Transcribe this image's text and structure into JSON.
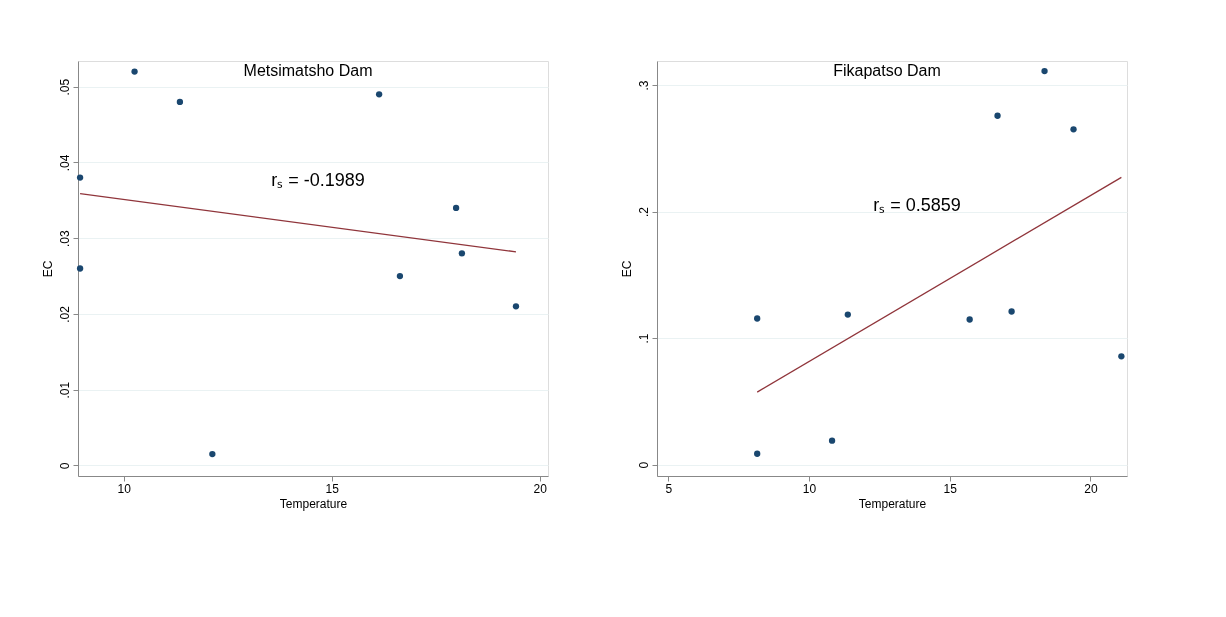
{
  "chart_data": [
    {
      "type": "scatter",
      "title": "Metsimatsho Dam",
      "xlabel": "Temperature",
      "ylabel": "EC",
      "xlim": [
        8.9,
        20.2
      ],
      "xticks": [
        10,
        15,
        20
      ],
      "ylim": [
        -0.0014,
        0.0534
      ],
      "yticks": [
        0,
        {
          "value": 0.01,
          "label": ".01"
        },
        {
          "value": 0.02,
          "label": ".02"
        },
        {
          "value": 0.03,
          "label": ".03"
        },
        {
          "value": 0.04,
          "label": ".04"
        },
        {
          "value": 0.05,
          "label": ".05"
        }
      ],
      "grid": "y",
      "series": [
        {
          "marker": "circle",
          "color": "#1a476f",
          "x": [
            8.95,
            8.95,
            10.26,
            11.35,
            12.13,
            16.14,
            16.64,
            17.99,
            18.13,
            19.43
          ],
          "values": [
            0.038,
            0.026,
            0.052,
            0.048,
            0.0015,
            0.049,
            0.025,
            0.034,
            0.028,
            0.021
          ]
        },
        {
          "type": "line",
          "color": "#90353b",
          "line_style": "solid",
          "x": [
            8.95,
            19.43
          ],
          "values": [
            0.0359,
            0.0282
          ]
        }
      ],
      "annotations": [
        "rₛ = -0.1989"
      ]
    },
    {
      "type": "scatter",
      "title": "Fikapatso Dam",
      "xlabel": "Temperature",
      "ylabel": "EC",
      "xlim": [
        4.6,
        21.3
      ],
      "xticks": [
        5,
        10,
        15,
        20
      ],
      "ylim": [
        -0.009,
        0.319
      ],
      "yticks": [
        0,
        {
          "value": 0.1,
          "label": ".1"
        },
        {
          "value": 0.2,
          "label": ".2"
        },
        {
          "value": 0.3,
          "label": ".3"
        }
      ],
      "grid": "y",
      "series": [
        {
          "marker": "circle",
          "color": "#1a476f",
          "x": [
            8.16,
            8.16,
            10.82,
            11.38,
            15.71,
            16.7,
            17.2,
            18.37,
            19.4,
            21.1
          ],
          "values": [
            0.1155,
            0.0086,
            0.0189,
            0.1186,
            0.1147,
            0.2757,
            0.121,
            0.311,
            0.265,
            0.0856
          ]
        },
        {
          "type": "line",
          "color": "#90353b",
          "line_style": "solid",
          "x": [
            8.16,
            21.1
          ],
          "values": [
            0.0573,
            0.227
          ]
        }
      ],
      "annotations": [
        "rₛ = 0.5859"
      ]
    }
  ]
}
